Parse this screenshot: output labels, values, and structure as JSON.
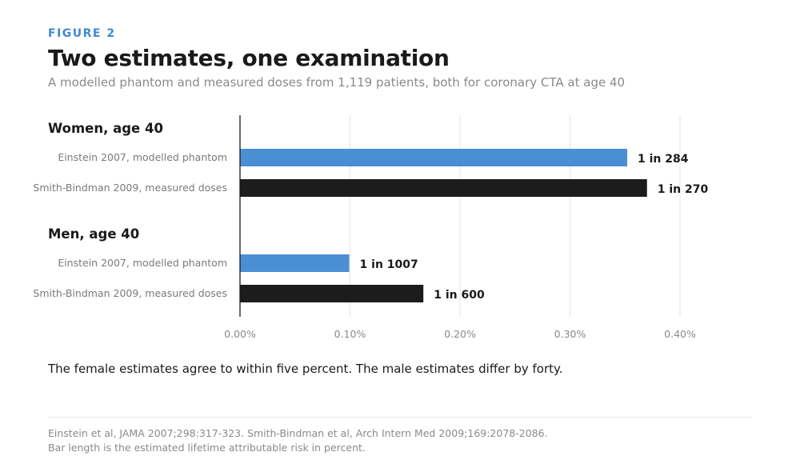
{
  "figure": {
    "eyebrow": "FIGURE 2",
    "title": "Two estimates, one examination",
    "subtitle": "A modelled phantom and measured doses from 1,119 patients, both for coronary CTA at age 40",
    "note": "The female estimates agree to within five percent. The male estimates differ by forty.",
    "source_line1": "Einstein et al, JAMA 2007;298:317-323. Smith-Bindman et al, Arch Intern Med 2009;169:2078-2086.",
    "source_line2": "Bar length is the estimated lifetime attributable risk in percent."
  },
  "chart_data": {
    "type": "bar",
    "orientation": "horizontal",
    "xlim": [
      0,
      0.4
    ],
    "x_ticks": [
      0,
      0.1,
      0.2,
      0.3,
      0.4
    ],
    "x_tick_labels": [
      "0.00%",
      "0.10%",
      "0.20%",
      "0.30%",
      "0.40%"
    ],
    "x_grid": true,
    "colors": {
      "modelled": "#4a8fd4",
      "measured": "#1c1c1c"
    },
    "groups": [
      {
        "label": "Women, age 40",
        "bars": [
          {
            "label": "Einstein 2007, modelled phantom",
            "value": 0.352,
            "data_label": "1 in 284",
            "kind": "modelled"
          },
          {
            "label": "Smith-Bindman 2009, measured doses",
            "value": 0.37,
            "data_label": "1 in 270",
            "kind": "measured"
          }
        ]
      },
      {
        "label": "Men, age 40",
        "bars": [
          {
            "label": "Einstein 2007, modelled phantom",
            "value": 0.0993,
            "data_label": "1 in 1007",
            "kind": "modelled"
          },
          {
            "label": "Smith-Bindman 2009, measured doses",
            "value": 0.1667,
            "data_label": "1 in 600",
            "kind": "measured"
          }
        ]
      }
    ]
  }
}
